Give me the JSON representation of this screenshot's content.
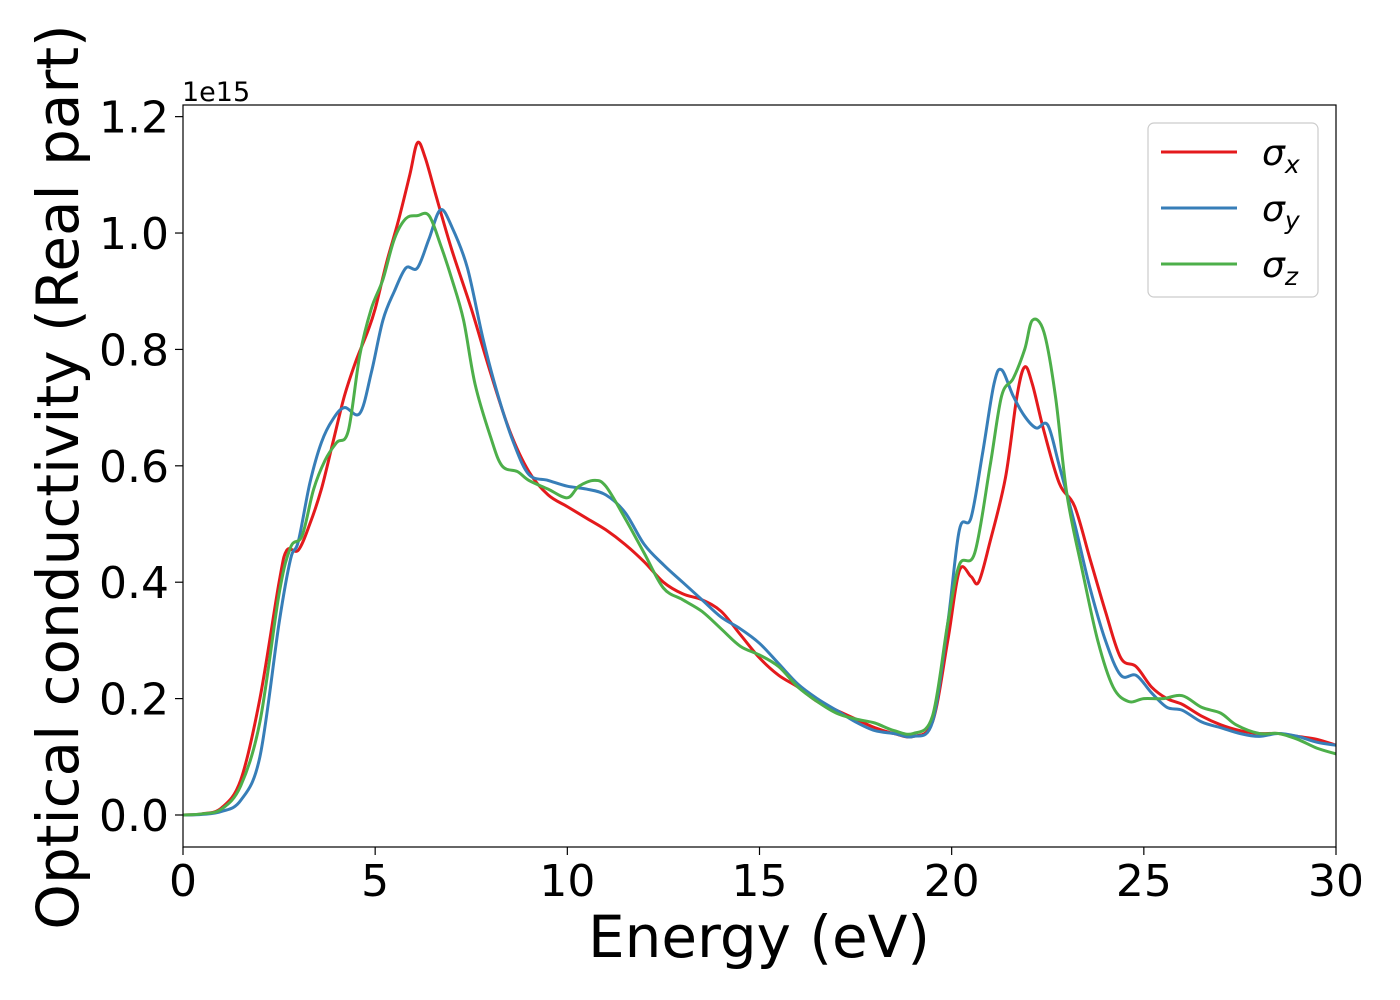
{
  "chart_data": {
    "type": "line",
    "title": "",
    "xlabel": "Energy (eV)",
    "ylabel": "Optical conductivity (Real part)",
    "y_offset_label": "1e15",
    "y_multiplier": 1000000000000000.0,
    "xlim": [
      0,
      30
    ],
    "ylim": [
      -0.055,
      1.22
    ],
    "x_ticks": [
      0,
      5,
      10,
      15,
      20,
      25,
      30
    ],
    "x_tick_labels": [
      "0",
      "5",
      "10",
      "15",
      "20",
      "25",
      "30"
    ],
    "y_ticks": [
      0.0,
      0.2,
      0.4,
      0.6,
      0.8,
      1.0,
      1.2
    ],
    "y_tick_labels": [
      "0.0",
      "0.2",
      "0.4",
      "0.6",
      "0.8",
      "1.0",
      "1.2"
    ],
    "grid": false,
    "legend_position": "top-right",
    "series": [
      {
        "name": "σx",
        "legend_symbol": "σ",
        "legend_subscript": "x",
        "color": "#e41a1c",
        "points": [
          [
            0,
            0.0
          ],
          [
            0.5,
            0.002
          ],
          [
            1.0,
            0.012
          ],
          [
            1.5,
            0.06
          ],
          [
            2.0,
            0.2
          ],
          [
            2.5,
            0.4
          ],
          [
            2.7,
            0.455
          ],
          [
            3.0,
            0.455
          ],
          [
            3.3,
            0.5
          ],
          [
            3.6,
            0.56
          ],
          [
            3.9,
            0.64
          ],
          [
            4.2,
            0.72
          ],
          [
            4.5,
            0.78
          ],
          [
            4.8,
            0.83
          ],
          [
            5.0,
            0.87
          ],
          [
            5.3,
            0.95
          ],
          [
            5.6,
            1.02
          ],
          [
            5.9,
            1.1
          ],
          [
            6.1,
            1.155
          ],
          [
            6.3,
            1.13
          ],
          [
            6.6,
            1.06
          ],
          [
            7.0,
            0.97
          ],
          [
            7.5,
            0.87
          ],
          [
            8.0,
            0.76
          ],
          [
            8.5,
            0.66
          ],
          [
            9.0,
            0.59
          ],
          [
            9.5,
            0.55
          ],
          [
            10.0,
            0.53
          ],
          [
            10.5,
            0.51
          ],
          [
            11.0,
            0.49
          ],
          [
            11.5,
            0.465
          ],
          [
            12.0,
            0.435
          ],
          [
            12.5,
            0.4
          ],
          [
            13.0,
            0.38
          ],
          [
            13.5,
            0.37
          ],
          [
            14.0,
            0.35
          ],
          [
            14.5,
            0.31
          ],
          [
            15.0,
            0.27
          ],
          [
            15.5,
            0.24
          ],
          [
            16.0,
            0.22
          ],
          [
            16.5,
            0.195
          ],
          [
            17.0,
            0.18
          ],
          [
            17.5,
            0.165
          ],
          [
            18.0,
            0.15
          ],
          [
            18.5,
            0.14
          ],
          [
            19.0,
            0.135
          ],
          [
            19.5,
            0.16
          ],
          [
            19.9,
            0.3
          ],
          [
            20.2,
            0.42
          ],
          [
            20.5,
            0.41
          ],
          [
            20.7,
            0.4
          ],
          [
            21.0,
            0.47
          ],
          [
            21.4,
            0.58
          ],
          [
            21.7,
            0.72
          ],
          [
            21.9,
            0.77
          ],
          [
            22.1,
            0.74
          ],
          [
            22.4,
            0.66
          ],
          [
            22.8,
            0.57
          ],
          [
            23.2,
            0.53
          ],
          [
            23.6,
            0.44
          ],
          [
            24.0,
            0.35
          ],
          [
            24.4,
            0.27
          ],
          [
            24.8,
            0.255
          ],
          [
            25.2,
            0.22
          ],
          [
            25.6,
            0.2
          ],
          [
            26.0,
            0.19
          ],
          [
            26.5,
            0.17
          ],
          [
            27.0,
            0.155
          ],
          [
            27.5,
            0.145
          ],
          [
            28.0,
            0.14
          ],
          [
            28.5,
            0.14
          ],
          [
            29.0,
            0.135
          ],
          [
            29.5,
            0.13
          ],
          [
            30.0,
            0.12
          ]
        ]
      },
      {
        "name": "σy",
        "legend_symbol": "σ",
        "legend_subscript": "y",
        "color": "#377eb8",
        "points": [
          [
            0,
            0.0
          ],
          [
            0.5,
            0.001
          ],
          [
            1.0,
            0.006
          ],
          [
            1.5,
            0.025
          ],
          [
            2.0,
            0.1
          ],
          [
            2.5,
            0.33
          ],
          [
            2.8,
            0.44
          ],
          [
            3.0,
            0.47
          ],
          [
            3.3,
            0.57
          ],
          [
            3.6,
            0.64
          ],
          [
            3.9,
            0.68
          ],
          [
            4.2,
            0.7
          ],
          [
            4.6,
            0.69
          ],
          [
            4.9,
            0.76
          ],
          [
            5.2,
            0.85
          ],
          [
            5.5,
            0.9
          ],
          [
            5.8,
            0.94
          ],
          [
            6.1,
            0.94
          ],
          [
            6.4,
            0.99
          ],
          [
            6.7,
            1.04
          ],
          [
            7.0,
            1.01
          ],
          [
            7.4,
            0.94
          ],
          [
            7.8,
            0.82
          ],
          [
            8.2,
            0.72
          ],
          [
            8.6,
            0.64
          ],
          [
            9.0,
            0.585
          ],
          [
            9.5,
            0.575
          ],
          [
            10.0,
            0.565
          ],
          [
            10.5,
            0.56
          ],
          [
            11.0,
            0.55
          ],
          [
            11.5,
            0.52
          ],
          [
            12.0,
            0.465
          ],
          [
            12.5,
            0.43
          ],
          [
            13.0,
            0.4
          ],
          [
            13.5,
            0.37
          ],
          [
            14.0,
            0.34
          ],
          [
            14.5,
            0.32
          ],
          [
            15.0,
            0.295
          ],
          [
            15.5,
            0.26
          ],
          [
            16.0,
            0.225
          ],
          [
            16.5,
            0.2
          ],
          [
            17.0,
            0.18
          ],
          [
            17.5,
            0.16
          ],
          [
            18.0,
            0.145
          ],
          [
            18.5,
            0.14
          ],
          [
            19.0,
            0.135
          ],
          [
            19.5,
            0.16
          ],
          [
            19.9,
            0.33
          ],
          [
            20.2,
            0.49
          ],
          [
            20.5,
            0.51
          ],
          [
            20.8,
            0.62
          ],
          [
            21.1,
            0.74
          ],
          [
            21.3,
            0.765
          ],
          [
            21.6,
            0.72
          ],
          [
            21.9,
            0.685
          ],
          [
            22.2,
            0.665
          ],
          [
            22.5,
            0.67
          ],
          [
            22.8,
            0.6
          ],
          [
            23.2,
            0.5
          ],
          [
            23.6,
            0.39
          ],
          [
            24.0,
            0.3
          ],
          [
            24.4,
            0.24
          ],
          [
            24.8,
            0.24
          ],
          [
            25.2,
            0.21
          ],
          [
            25.6,
            0.185
          ],
          [
            26.0,
            0.18
          ],
          [
            26.5,
            0.16
          ],
          [
            27.0,
            0.15
          ],
          [
            27.5,
            0.14
          ],
          [
            28.0,
            0.135
          ],
          [
            28.5,
            0.14
          ],
          [
            29.0,
            0.135
          ],
          [
            29.5,
            0.125
          ],
          [
            30.0,
            0.12
          ]
        ]
      },
      {
        "name": "σz",
        "legend_symbol": "σ",
        "legend_subscript": "z",
        "color": "#4daf4a",
        "points": [
          [
            0,
            0.0
          ],
          [
            0.5,
            0.002
          ],
          [
            1.0,
            0.01
          ],
          [
            1.5,
            0.05
          ],
          [
            2.0,
            0.16
          ],
          [
            2.5,
            0.38
          ],
          [
            2.8,
            0.46
          ],
          [
            3.1,
            0.48
          ],
          [
            3.4,
            0.56
          ],
          [
            3.7,
            0.61
          ],
          [
            4.0,
            0.64
          ],
          [
            4.3,
            0.66
          ],
          [
            4.6,
            0.79
          ],
          [
            4.9,
            0.87
          ],
          [
            5.2,
            0.92
          ],
          [
            5.5,
            0.99
          ],
          [
            5.8,
            1.025
          ],
          [
            6.1,
            1.03
          ],
          [
            6.4,
            1.03
          ],
          [
            6.7,
            0.98
          ],
          [
            7.0,
            0.92
          ],
          [
            7.3,
            0.85
          ],
          [
            7.6,
            0.74
          ],
          [
            8.0,
            0.65
          ],
          [
            8.3,
            0.6
          ],
          [
            8.7,
            0.59
          ],
          [
            9.0,
            0.575
          ],
          [
            9.5,
            0.56
          ],
          [
            10.0,
            0.545
          ],
          [
            10.3,
            0.565
          ],
          [
            10.7,
            0.575
          ],
          [
            11.0,
            0.565
          ],
          [
            11.5,
            0.51
          ],
          [
            12.0,
            0.45
          ],
          [
            12.5,
            0.39
          ],
          [
            13.0,
            0.37
          ],
          [
            13.5,
            0.35
          ],
          [
            14.0,
            0.32
          ],
          [
            14.5,
            0.29
          ],
          [
            15.0,
            0.275
          ],
          [
            15.5,
            0.255
          ],
          [
            16.0,
            0.22
          ],
          [
            16.5,
            0.195
          ],
          [
            17.0,
            0.175
          ],
          [
            17.5,
            0.165
          ],
          [
            18.0,
            0.158
          ],
          [
            18.5,
            0.145
          ],
          [
            19.0,
            0.14
          ],
          [
            19.5,
            0.17
          ],
          [
            19.9,
            0.33
          ],
          [
            20.2,
            0.43
          ],
          [
            20.6,
            0.45
          ],
          [
            21.0,
            0.6
          ],
          [
            21.3,
            0.72
          ],
          [
            21.6,
            0.75
          ],
          [
            21.9,
            0.8
          ],
          [
            22.1,
            0.85
          ],
          [
            22.4,
            0.83
          ],
          [
            22.7,
            0.72
          ],
          [
            23.0,
            0.55
          ],
          [
            23.4,
            0.42
          ],
          [
            23.8,
            0.3
          ],
          [
            24.2,
            0.22
          ],
          [
            24.6,
            0.195
          ],
          [
            25.0,
            0.2
          ],
          [
            25.5,
            0.2
          ],
          [
            26.0,
            0.205
          ],
          [
            26.5,
            0.185
          ],
          [
            27.0,
            0.175
          ],
          [
            27.4,
            0.155
          ],
          [
            28.0,
            0.14
          ],
          [
            28.5,
            0.14
          ],
          [
            29.0,
            0.13
          ],
          [
            29.5,
            0.115
          ],
          [
            30.0,
            0.105
          ]
        ]
      }
    ]
  }
}
